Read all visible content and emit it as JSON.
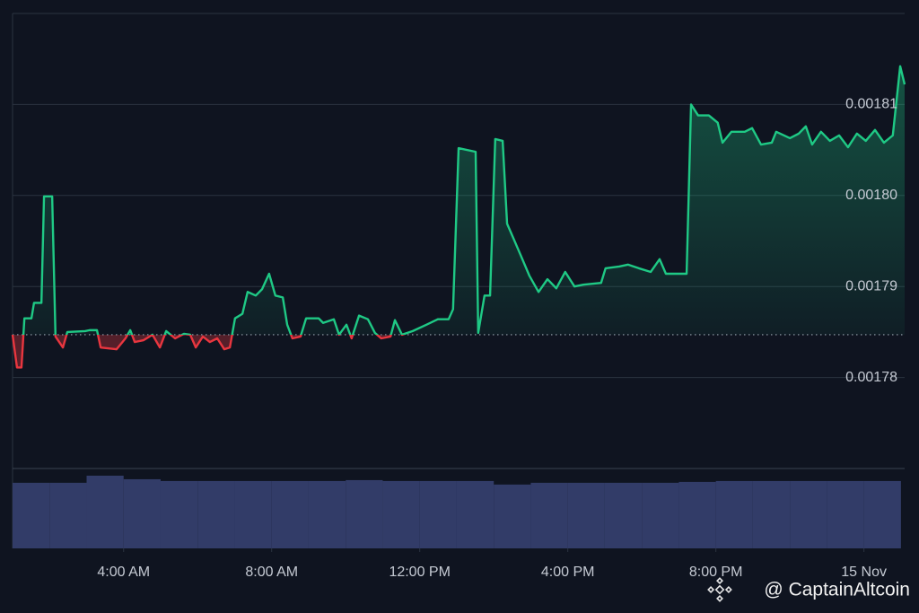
{
  "chart_data": {
    "type": "line",
    "x": [
      1.0,
      1.12,
      1.24,
      1.32,
      1.51,
      1.58,
      1.78,
      1.85,
      2.07,
      2.16,
      2.36,
      2.48,
      2.96,
      3.08,
      3.28,
      3.38,
      3.81,
      4.05,
      4.18,
      4.3,
      4.54,
      4.78,
      4.98,
      5.15,
      5.39,
      5.63,
      5.8,
      5.95,
      6.14,
      6.33,
      6.53,
      6.72,
      6.87,
      7.01,
      7.21,
      7.35,
      7.57,
      7.74,
      7.93,
      8.1,
      8.3,
      8.42,
      8.56,
      8.78,
      8.93,
      9.27,
      9.39,
      9.68,
      9.82,
      10.02,
      10.16,
      10.36,
      10.6,
      10.79,
      10.96,
      11.21,
      11.33,
      11.52,
      11.81,
      12.18,
      12.49,
      12.78,
      12.9,
      13.05,
      13.51,
      13.58,
      13.75,
      13.9,
      14.04,
      14.24,
      14.36,
      14.53,
      14.72,
      14.96,
      15.21,
      15.45,
      15.69,
      15.93,
      16.18,
      16.42,
      16.9,
      17.02,
      17.39,
      17.63,
      17.92,
      18.24,
      18.48,
      18.65,
      18.96,
      19.21,
      19.33,
      19.52,
      19.81,
      20.05,
      20.18,
      20.42,
      20.78,
      20.98,
      21.22,
      21.51,
      21.63,
      22.0,
      22.24,
      22.43,
      22.6,
      22.84,
      23.08,
      23.33,
      23.57,
      23.81,
      24.05,
      24.3,
      24.54,
      24.78,
      24.98,
      25.1
    ],
    "values": [
      0.0017847,
      0.0017811,
      0.0017811,
      0.0017865,
      0.0017865,
      0.0017882,
      0.0017882,
      0.0017999,
      0.0017999,
      0.0017845,
      0.0017833,
      0.001785,
      0.0017851,
      0.0017852,
      0.0017852,
      0.0017833,
      0.0017831,
      0.0017843,
      0.0017852,
      0.0017839,
      0.0017841,
      0.0017847,
      0.0017833,
      0.0017851,
      0.0017843,
      0.0017848,
      0.0017847,
      0.0017833,
      0.0017845,
      0.0017839,
      0.0017843,
      0.0017831,
      0.0017833,
      0.0017865,
      0.001787,
      0.0017894,
      0.001789,
      0.0017897,
      0.0017914,
      0.001789,
      0.0017888,
      0.0017858,
      0.0017843,
      0.0017845,
      0.0017865,
      0.0017865,
      0.001786,
      0.0017864,
      0.0017847,
      0.0017858,
      0.0017843,
      0.0017868,
      0.0017864,
      0.0017849,
      0.0017843,
      0.0017845,
      0.0017863,
      0.0017847,
      0.0017851,
      0.0017858,
      0.0017864,
      0.0017864,
      0.0017875,
      0.0018052,
      0.0018048,
      0.0017849,
      0.001789,
      0.001789,
      0.0018062,
      0.001806,
      0.0017969,
      0.0017953,
      0.0017935,
      0.0017912,
      0.0017894,
      0.0017908,
      0.0017898,
      0.0017916,
      0.00179,
      0.0017902,
      0.0017904,
      0.001792,
      0.0017922,
      0.0017924,
      0.001792,
      0.0017916,
      0.001793,
      0.0017914,
      0.0017914,
      0.0017914,
      0.00181,
      0.0018088,
      0.0018088,
      0.001808,
      0.0018058,
      0.001807,
      0.001807,
      0.0018074,
      0.0018056,
      0.0018058,
      0.001807,
      0.0018063,
      0.0018068,
      0.0018076,
      0.0018056,
      0.001807,
      0.001806,
      0.0018066,
      0.0018053,
      0.0018068,
      0.001806,
      0.0018072,
      0.0018058,
      0.0018066,
      0.0018142,
      0.0018122
    ],
    "baseline": 0.0017847,
    "color_up": "#1fc985",
    "color_down": "#e8363f",
    "xlim": [
      1.0,
      25.1
    ],
    "xticks": [
      {
        "value": 4,
        "label": "4:00 AM"
      },
      {
        "value": 8,
        "label": "8:00 AM"
      },
      {
        "value": 12,
        "label": "12:00 PM"
      },
      {
        "value": 16,
        "label": "4:00 PM"
      },
      {
        "value": 20,
        "label": "8:00 PM"
      },
      {
        "value": 24,
        "label": "15 Nov"
      }
    ],
    "ylim": [
      0.00177,
      0.00182
    ],
    "yticks": [
      0.00178,
      0.00179,
      {
        "value": 0.0018,
        "label": "0.00180"
      },
      0.00181
    ],
    "grid": true,
    "volume": {
      "bins": [
        1,
        2,
        3,
        4,
        5,
        6,
        7,
        8,
        9,
        10,
        11,
        12,
        13,
        14,
        15,
        16,
        17,
        18,
        19,
        20,
        21,
        22,
        23,
        24,
        25
      ],
      "values": [
        74,
        74,
        82,
        78,
        76,
        76,
        76,
        76,
        76,
        77,
        76,
        76,
        76,
        72,
        74,
        74,
        74,
        74,
        75,
        76,
        76,
        76,
        76,
        76
      ],
      "color": "#323c68"
    },
    "watermark": "@ CaptainAltcoin"
  }
}
